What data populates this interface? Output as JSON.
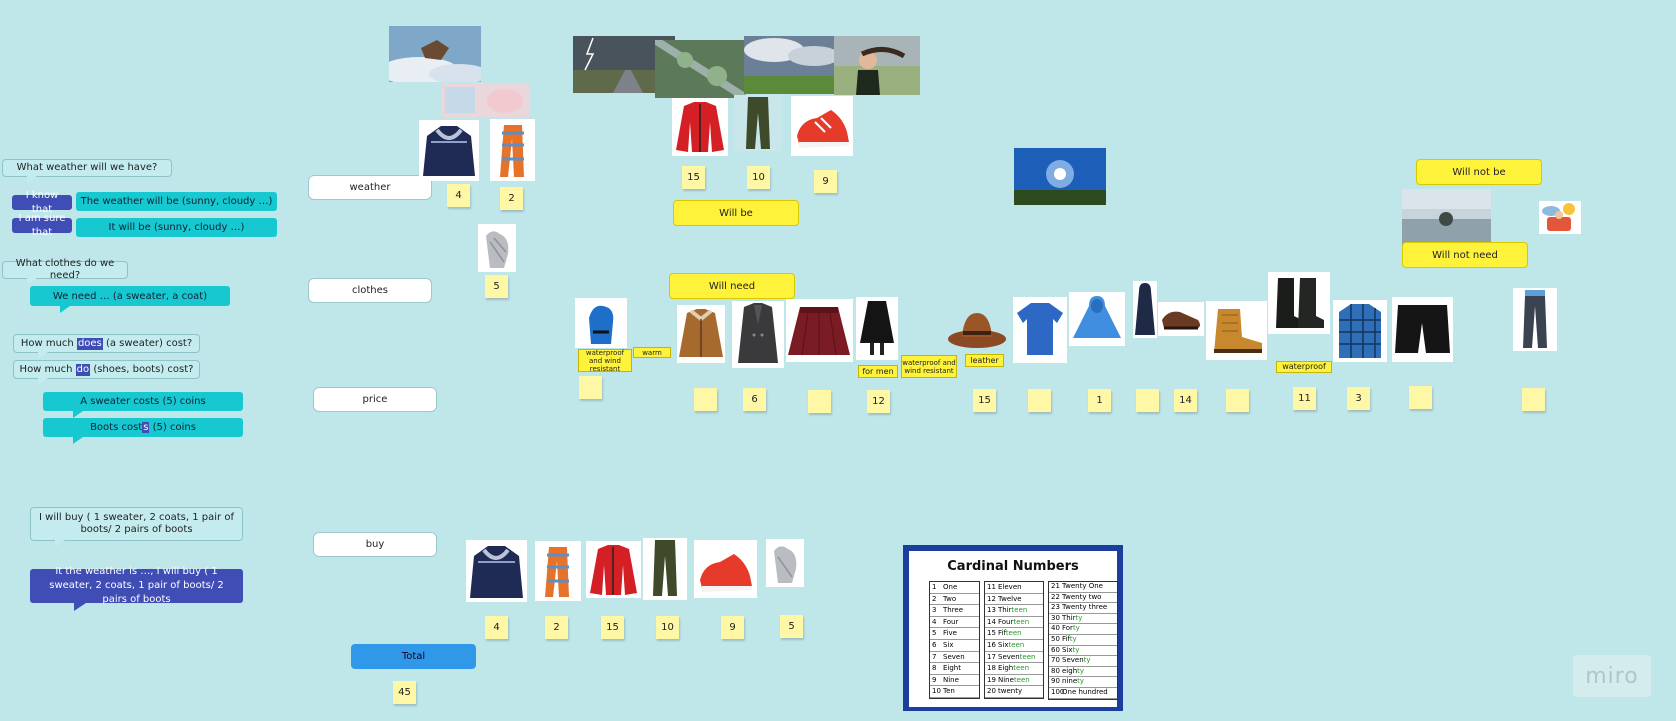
{
  "left_panel": {
    "q_weather": "What weather will we have?",
    "know_that": "I know that",
    "sure_that": "I am sure that",
    "weather_will_be": "The weather will be (sunny, cloudy …)",
    "it_will_be": "It will be (sunny, cloudy …)",
    "q_clothes": "What clothes do we need?",
    "we_need": "We need … (a sweater, a coat)",
    "how_much_does_a": "How much",
    "how_much_does_hl": "does",
    "how_much_does_b": "(a sweater) cost?",
    "how_much_do_a": "How much",
    "how_much_do_hl": "do",
    "how_much_do_b": "(shoes, boots) cost?",
    "sweater_costs": "A sweater costs (5) coins",
    "boots_cost_a": "Boots cost",
    "boots_cost_hl": "s",
    "boots_cost_b": "(5) coins",
    "i_will_buy": "I will buy ( 1 sweater, 2 coats, 1 pair of  boots/ 2 pairs of boots",
    "if_weather": "It the weather is …, I will buy ( 1 sweater, 2 coats, 1 pair of  boots/ 2 pairs of boots"
  },
  "rows": {
    "weather": "weather",
    "clothes": "clothes",
    "price": "price",
    "buy": "buy"
  },
  "labels": {
    "will_be": "Will be",
    "will_need": "Will need",
    "will_not_be": "Will not be",
    "will_not_need": "Will not need",
    "total": "Total"
  },
  "tags": {
    "waterproof_windresistant": "waterproof and wind resistant",
    "warm": "warm",
    "for_men": "for men",
    "waterproof_windresistant2": "waterproof and wind resistant",
    "leather": "leather",
    "waterproof": "waterproof"
  },
  "prices_top": {
    "sweater": "4",
    "scarf": "2",
    "gloves": "5",
    "jacket": "15",
    "pants": "10",
    "sneakers": "9"
  },
  "prices_row": [
    "",
    "",
    "6",
    "",
    "12",
    "15",
    "",
    "1",
    "",
    "14",
    "",
    "11",
    "3",
    "",
    ""
  ],
  "buy_prices": [
    "4",
    "2",
    "15",
    "10",
    "9",
    "5"
  ],
  "total_value": "45",
  "cardinal": {
    "title": "Cardinal Numbers",
    "col1": [
      [
        "1",
        "One"
      ],
      [
        "2",
        "Two"
      ],
      [
        "3",
        "Three"
      ],
      [
        "4",
        "Four"
      ],
      [
        "5",
        "Five"
      ],
      [
        "6",
        "Six"
      ],
      [
        "7",
        "Seven"
      ],
      [
        "8",
        "Eight"
      ],
      [
        "9",
        "Nine"
      ],
      [
        "10",
        "Ten"
      ]
    ],
    "col2": [
      [
        "11",
        "Eleven"
      ],
      [
        "12",
        "Twelve"
      ],
      [
        "13",
        "Thirteen"
      ],
      [
        "14",
        "Fourteen"
      ],
      [
        "15",
        "Fifteen"
      ],
      [
        "16",
        "Sixteen"
      ],
      [
        "17",
        "Seventeen"
      ],
      [
        "18",
        "Eighteen"
      ],
      [
        "19",
        "Nineteen"
      ],
      [
        "20",
        "twenty"
      ]
    ],
    "col3": [
      [
        "21",
        "Twenty One"
      ],
      [
        "22",
        "Twenty two"
      ],
      [
        "23",
        "Twenty three"
      ],
      [
        "30",
        "Thirty"
      ],
      [
        "40",
        "Forty"
      ],
      [
        "50",
        "Fifty"
      ],
      [
        "60",
        "Sixty"
      ],
      [
        "70",
        "Seventy"
      ],
      [
        "80",
        "eighty"
      ],
      [
        "90",
        "ninety"
      ],
      [
        "100",
        "One hundred"
      ]
    ]
  },
  "brand": "miro",
  "colors": {
    "board": "#bfe7ea",
    "cyan": "#17c8d1",
    "navy": "#3f4db4",
    "sticky": "#fdf7a6",
    "yellow_label": "#fff23a",
    "total_blue": "#2f98e8"
  }
}
